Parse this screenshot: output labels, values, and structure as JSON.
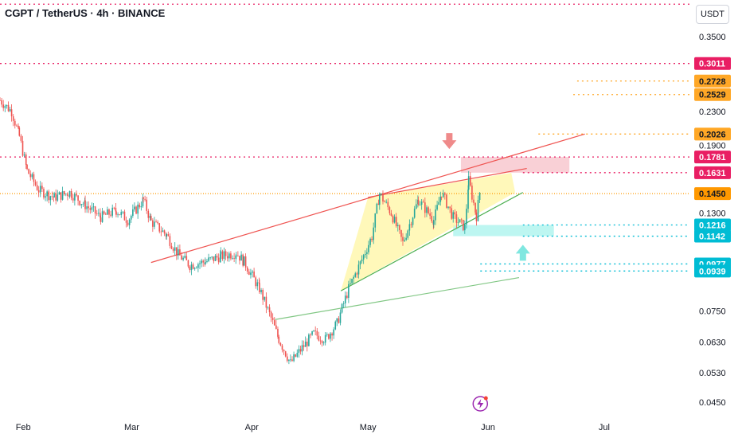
{
  "header": {
    "symbol_line": "CGPT / TetherUS · 4h · BINANCE"
  },
  "currency_button": "USDT",
  "chart_data": {
    "type": "candlestick",
    "symbol": "CGPT / TetherUS",
    "interval": "4h",
    "exchange": "BINANCE",
    "y_scale": "log",
    "ylim": [
      0.043,
      0.43
    ],
    "xlim": [
      "2025-01-26",
      "2025-07-23"
    ],
    "y_ticks": [
      "0.3500",
      "0.2300",
      "0.1900",
      "0.1300",
      "0.0750",
      "0.0630",
      "0.0530",
      "0.0450"
    ],
    "x_ticks": [
      {
        "label": "Feb",
        "date": "2025-02-01"
      },
      {
        "label": "Mar",
        "date": "2025-03-01"
      },
      {
        "label": "Apr",
        "date": "2025-04-01"
      },
      {
        "label": "May",
        "date": "2025-05-01"
      },
      {
        "label": "Jun",
        "date": "2025-06-01"
      },
      {
        "label": "Jul",
        "date": "2025-07-01"
      }
    ],
    "price_path": [
      [
        "2025-01-26",
        0.245
      ],
      [
        "2025-01-29",
        0.23
      ],
      [
        "2025-01-31",
        0.2
      ],
      [
        "2025-02-02",
        0.165
      ],
      [
        "2025-02-05",
        0.148
      ],
      [
        "2025-02-09",
        0.142
      ],
      [
        "2025-02-13",
        0.146
      ],
      [
        "2025-02-17",
        0.136
      ],
      [
        "2025-02-21",
        0.127
      ],
      [
        "2025-02-25",
        0.132
      ],
      [
        "2025-02-28",
        0.125
      ],
      [
        "2025-03-04",
        0.14
      ],
      [
        "2025-03-06",
        0.124
      ],
      [
        "2025-03-10",
        0.115
      ],
      [
        "2025-03-13",
        0.103
      ],
      [
        "2025-03-16",
        0.097
      ],
      [
        "2025-03-20",
        0.099
      ],
      [
        "2025-03-24",
        0.102
      ],
      [
        "2025-03-28",
        0.104
      ],
      [
        "2025-03-30",
        0.099
      ],
      [
        "2025-04-03",
        0.085
      ],
      [
        "2025-04-06",
        0.072
      ],
      [
        "2025-04-08",
        0.064
      ],
      [
        "2025-04-11",
        0.056
      ],
      [
        "2025-04-14",
        0.061
      ],
      [
        "2025-04-17",
        0.066
      ],
      [
        "2025-04-20",
        0.064
      ],
      [
        "2025-04-23",
        0.07
      ],
      [
        "2025-04-26",
        0.085
      ],
      [
        "2025-04-29",
        0.098
      ],
      [
        "2025-05-02",
        0.114
      ],
      [
        "2025-05-04",
        0.145
      ],
      [
        "2025-05-07",
        0.13
      ],
      [
        "2025-05-10",
        0.11
      ],
      [
        "2025-05-14",
        0.14
      ],
      [
        "2025-05-18",
        0.125
      ],
      [
        "2025-05-20",
        0.146
      ],
      [
        "2025-05-23",
        0.127
      ],
      [
        "2025-05-26",
        0.12
      ],
      [
        "2025-05-27",
        0.156
      ],
      [
        "2025-05-29",
        0.128
      ],
      [
        "2025-05-30",
        0.149
      ]
    ],
    "current_price": 0.145,
    "price_labels": [
      {
        "value": 0.3011,
        "label": "0.3011",
        "color": "#e91e63",
        "line_start": "2025-01-26"
      },
      {
        "value": 0.2728,
        "label": "0.2728",
        "color": "#ffa726",
        "line_start": "2025-06-24"
      },
      {
        "value": 0.2529,
        "label": "0.2529",
        "color": "#ffa726",
        "line_start": "2025-06-23"
      },
      {
        "value": 0.2026,
        "label": "0.2026",
        "color": "#ffa726",
        "line_start": "2025-06-14"
      },
      {
        "value": 0.1781,
        "label": "0.1781",
        "color": "#e91e63",
        "line_start": "2025-01-26"
      },
      {
        "value": 0.1631,
        "label": "0.1631",
        "color": "#e91e63",
        "line_start": "2025-06-10"
      },
      {
        "value": 0.145,
        "label": "0.1450",
        "color": "#ff9800",
        "line_start": "2025-01-26"
      },
      {
        "value": 0.1216,
        "label": "0.1216",
        "color": "#00bcd4",
        "line_start": "2025-06-10"
      },
      {
        "value": 0.1142,
        "label": "0.1142",
        "color": "#00bcd4",
        "line_start": "2025-06-10"
      },
      {
        "value": 0.0977,
        "label": "0.0977",
        "color": "#00bcd4",
        "line_start": "2025-05-30"
      },
      {
        "value": 0.0939,
        "label": "0.0939",
        "color": "#00bcd4",
        "line_start": "2025-05-30"
      }
    ],
    "top_dotted_level": 0.42,
    "trendlines": [
      {
        "name": "upper",
        "color": "#ef5350",
        "from": [
          "2025-03-06",
          0.0985
        ],
        "to": [
          "2025-06-26",
          0.2026
        ]
      },
      {
        "name": "wedge-top",
        "color": "#ef5350",
        "from": [
          "2025-05-01",
          0.142
        ],
        "to": [
          "2025-06-11",
          0.167
        ]
      },
      {
        "name": "wedge-bottom",
        "color": "#4caf50",
        "from": [
          "2025-04-24",
          0.084
        ],
        "to": [
          "2025-06-10",
          0.146
        ]
      },
      {
        "name": "lower",
        "color": "#81c784",
        "from": [
          "2025-04-07",
          0.0715
        ],
        "to": [
          "2025-06-09",
          0.0905
        ]
      }
    ],
    "wedge_fill": [
      [
        "2025-05-01",
        0.142
      ],
      [
        "2025-06-07",
        0.163
      ],
      [
        "2025-06-08",
        0.146
      ],
      [
        "2025-04-24",
        0.084
      ]
    ],
    "zones": [
      {
        "name": "resistance",
        "color": "#f8c8cf",
        "date_from": "2025-05-25",
        "date_to": "2025-06-22",
        "y_from": 0.1631,
        "y_to": 0.1781
      },
      {
        "name": "support",
        "color": "#b2f5ee",
        "date_from": "2025-05-23",
        "date_to": "2025-06-18",
        "y_from": 0.1142,
        "y_to": 0.1216
      }
    ],
    "markers": [
      {
        "name": "down-arrow",
        "color": "#ef8a8a",
        "date": "2025-05-22",
        "value": 0.193,
        "direction": "down"
      },
      {
        "name": "up-arrow",
        "color": "#7fe7e0",
        "date": "2025-06-10",
        "value": 0.105,
        "direction": "up"
      }
    ],
    "icons": [
      {
        "name": "lightning-icon",
        "color": "#9c27b0",
        "date": "2025-05-30"
      }
    ]
  }
}
